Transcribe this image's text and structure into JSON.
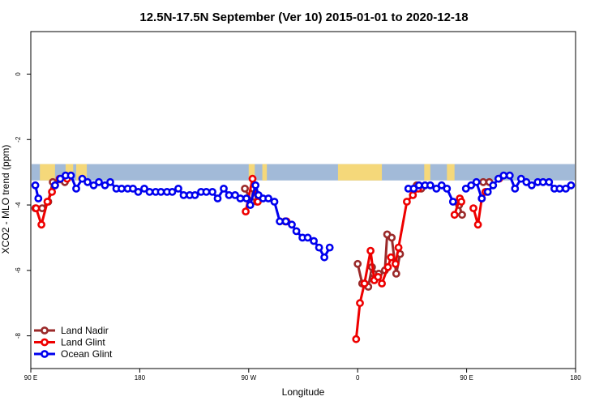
{
  "chart_data": {
    "type": "line",
    "title": "12.5N-17.5N September (Ver 10)   2015-01-01 to 2020-12-18",
    "xlabel": "Longitude",
    "ylabel": "XCO2 - MLO trend (ppm)",
    "xlim": [
      90,
      450
    ],
    "ylim": [
      -9.0,
      1.3
    ],
    "x_ticks": [
      90,
      162,
      234,
      306,
      378,
      450
    ],
    "x_tick_labels": [
      "90 E",
      "180",
      "90 W",
      "0",
      "90 E",
      "180"
    ],
    "y_ticks": [
      0,
      -2,
      -4,
      -6,
      -8
    ],
    "y_tick_labels": [
      "0",
      "-2",
      "-4",
      "-6",
      "-8"
    ],
    "legend_position": "bottom-left",
    "land_strip": {
      "y_range": [
        -3.25,
        -2.75
      ],
      "ocean_color": "#a2bad8",
      "land_color": "#f5d87a",
      "land_segments": [
        [
          96,
          106
        ],
        [
          113,
          118
        ],
        [
          120,
          127
        ],
        [
          234,
          238
        ],
        [
          243,
          246
        ],
        [
          293,
          322
        ],
        [
          350,
          354
        ],
        [
          365,
          370
        ]
      ]
    },
    "series": [
      {
        "name": "Land Nadir",
        "color": "#9b2a2a",
        "segments": [
          [
            [
              93.0,
              -4.1
            ],
            [
              97.5,
              -4.1
            ],
            [
              101.5,
              -3.9
            ],
            [
              104.5,
              -3.3
            ],
            [
              112.5,
              -3.3
            ]
          ],
          [
            [
              231.5,
              -3.5
            ],
            [
              236.0,
              -3.9
            ],
            [
              237.0,
              -3.5
            ],
            [
              239.5,
              -3.9
            ]
          ],
          [
            [
              258.0,
              -4.5
            ]
          ],
          [
            [
              306.0,
              -5.8
            ],
            [
              309.0,
              -6.4
            ],
            [
              313.0,
              -6.5
            ],
            [
              315.5,
              -5.9
            ],
            [
              316.5,
              -6.1
            ],
            [
              320.0,
              -6.1
            ],
            [
              324.0,
              -6.0
            ],
            [
              325.5,
              -4.9
            ],
            [
              328.5,
              -5.0
            ],
            [
              331.5,
              -6.1
            ],
            [
              334.0,
              -5.5
            ]
          ],
          [
            [
              345.0,
              -3.4
            ],
            [
              348.0,
              -3.5
            ]
          ],
          [
            [
              373.0,
              -4.0
            ],
            [
              375.0,
              -4.3
            ]
          ],
          [
            [
              389.0,
              -3.3
            ],
            [
              393.0,
              -3.3
            ]
          ]
        ]
      },
      {
        "name": "Land Glint",
        "color": "#ee0000",
        "segments": [
          [
            [
              93.5,
              -4.1
            ],
            [
              97.0,
              -4.6
            ],
            [
              101.0,
              -3.9
            ],
            [
              104.0,
              -3.6
            ],
            [
              106.0,
              -3.4
            ],
            [
              109.0,
              -3.2
            ],
            [
              114.0,
              -3.2
            ]
          ],
          [
            [
              232.0,
              -4.2
            ],
            [
              236.5,
              -3.2
            ],
            [
              240.0,
              -3.9
            ]
          ],
          [
            [
              259.0,
              -4.5
            ]
          ],
          [
            [
              305.0,
              -8.1
            ],
            [
              307.5,
              -7.0
            ],
            [
              310.5,
              -6.4
            ],
            [
              314.5,
              -5.4
            ],
            [
              317.0,
              -6.3
            ],
            [
              319.5,
              -6.2
            ],
            [
              322.0,
              -6.4
            ],
            [
              326.0,
              -5.9
            ],
            [
              328.0,
              -5.6
            ],
            [
              331.0,
              -5.8
            ],
            [
              333.0,
              -5.3
            ],
            [
              338.5,
              -3.9
            ],
            [
              342.5,
              -3.7
            ],
            [
              346.0,
              -3.5
            ]
          ],
          [
            [
              370.0,
              -4.3
            ],
            [
              373.5,
              -3.8
            ],
            [
              374.5,
              -3.9
            ]
          ],
          [
            [
              382.5,
              -4.1
            ],
            [
              385.5,
              -4.6
            ],
            [
              388.0,
              -3.8
            ],
            [
              390.5,
              -3.6
            ]
          ],
          [
            [
              399.5,
              -3.2
            ]
          ]
        ]
      },
      {
        "name": "Ocean Glint",
        "color": "#0000ee",
        "segments": [
          [
            [
              93.0,
              -3.4
            ],
            [
              95.0,
              -3.8
            ]
          ],
          [
            [
              106.0,
              -3.4
            ],
            [
              109.5,
              -3.2
            ],
            [
              113.0,
              -3.1
            ],
            [
              116.5,
              -3.1
            ],
            [
              120.0,
              -3.5
            ],
            [
              124.0,
              -3.2
            ],
            [
              127.5,
              -3.3
            ],
            [
              131.5,
              -3.4
            ],
            [
              135.0,
              -3.3
            ],
            [
              139.0,
              -3.4
            ],
            [
              142.5,
              -3.3
            ],
            [
              146.5,
              -3.5
            ],
            [
              150.0,
              -3.5
            ],
            [
              154.0,
              -3.5
            ],
            [
              157.5,
              -3.5
            ],
            [
              161.0,
              -3.6
            ],
            [
              165.0,
              -3.5
            ],
            [
              168.5,
              -3.6
            ],
            [
              172.5,
              -3.6
            ],
            [
              176.0,
              -3.6
            ],
            [
              180.0,
              -3.6
            ],
            [
              183.5,
              -3.6
            ],
            [
              187.5,
              -3.5
            ],
            [
              191.0,
              -3.7
            ],
            [
              195.0,
              -3.7
            ],
            [
              198.5,
              -3.7
            ],
            [
              202.5,
              -3.6
            ],
            [
              206.0,
              -3.6
            ],
            [
              210.0,
              -3.6
            ],
            [
              213.5,
              -3.8
            ],
            [
              217.5,
              -3.5
            ],
            [
              221.0,
              -3.7
            ],
            [
              225.0,
              -3.7
            ],
            [
              228.5,
              -3.8
            ],
            [
              232.5,
              -3.8
            ],
            [
              235.0,
              -4.0
            ],
            [
              238.5,
              -3.4
            ],
            [
              240.5,
              -3.7
            ],
            [
              243.5,
              -3.8
            ],
            [
              247.0,
              -3.8
            ],
            [
              251.0,
              -3.9
            ],
            [
              254.5,
              -4.5
            ],
            [
              258.5,
              -4.5
            ],
            [
              262.5,
              -4.6
            ],
            [
              265.5,
              -4.8
            ],
            [
              269.5,
              -5.0
            ],
            [
              273.0,
              -5.0
            ],
            [
              277.0,
              -5.1
            ],
            [
              280.5,
              -5.3
            ],
            [
              284.0,
              -5.6
            ],
            [
              287.5,
              -5.3
            ]
          ],
          [
            [
              339.5,
              -3.5
            ],
            [
              343.0,
              -3.5
            ],
            [
              346.5,
              -3.4
            ],
            [
              350.5,
              -3.4
            ],
            [
              354.0,
              -3.4
            ],
            [
              358.0,
              -3.5
            ],
            [
              361.5,
              -3.4
            ],
            [
              365.0,
              -3.5
            ],
            [
              369.0,
              -3.9
            ]
          ],
          [
            [
              377.5,
              -3.5
            ],
            [
              381.0,
              -3.4
            ],
            [
              384.5,
              -3.3
            ],
            [
              388.0,
              -3.8
            ]
          ],
          [
            [
              392.0,
              -3.6
            ],
            [
              395.5,
              -3.4
            ],
            [
              399.0,
              -3.2
            ],
            [
              402.5,
              -3.1
            ],
            [
              406.5,
              -3.1
            ],
            [
              410.0,
              -3.5
            ],
            [
              414.0,
              -3.2
            ],
            [
              417.5,
              -3.3
            ],
            [
              421.0,
              -3.4
            ],
            [
              425.0,
              -3.3
            ],
            [
              428.5,
              -3.3
            ],
            [
              432.5,
              -3.3
            ],
            [
              436.0,
              -3.5
            ],
            [
              439.5,
              -3.5
            ],
            [
              443.5,
              -3.5
            ],
            [
              447.0,
              -3.4
            ]
          ]
        ]
      }
    ]
  }
}
